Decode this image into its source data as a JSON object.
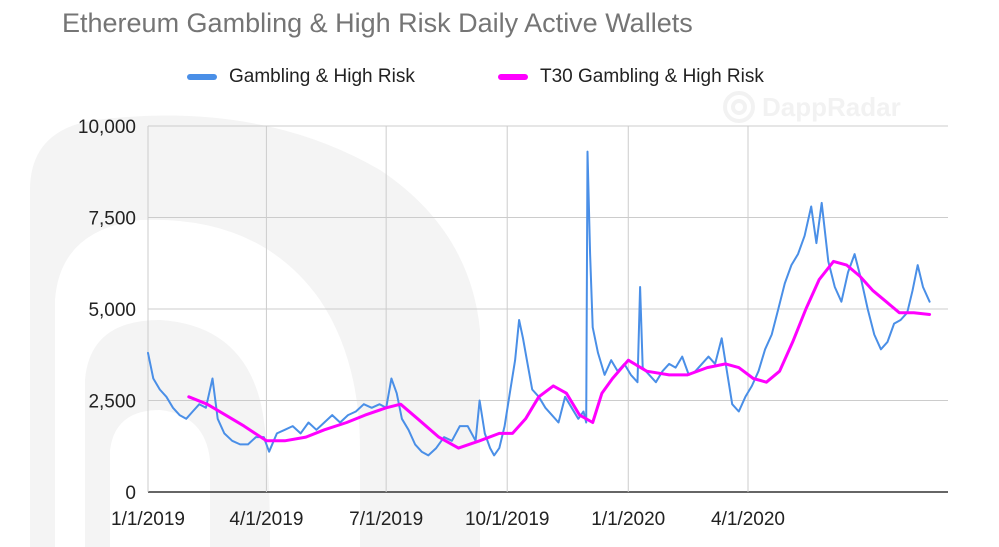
{
  "chart_data": {
    "type": "line",
    "title": "Ethereum Gambling & High Risk Daily Active Wallets",
    "watermark": "DappRadar",
    "xlabel": "",
    "ylabel": "",
    "x_ticks": [
      "1/1/2019",
      "4/1/2019",
      "7/1/2019",
      "10/1/2019",
      "1/1/2020",
      "4/1/2020"
    ],
    "y_ticks": [
      "0",
      "2,500",
      "5,000",
      "7,500",
      "10,000"
    ],
    "ylim": [
      0,
      10000
    ],
    "xlim": [
      "2019-01-01",
      "2020-08-31"
    ],
    "grid": true,
    "legend_position": "top",
    "series": [
      {
        "name": "Gambling & High Risk",
        "color": "#4a8fe7",
        "points": [
          [
            "2019-01-01",
            3800
          ],
          [
            "2019-01-05",
            3100
          ],
          [
            "2019-01-10",
            2800
          ],
          [
            "2019-01-15",
            2600
          ],
          [
            "2019-01-20",
            2300
          ],
          [
            "2019-01-25",
            2100
          ],
          [
            "2019-01-30",
            2000
          ],
          [
            "2019-02-04",
            2200
          ],
          [
            "2019-02-09",
            2400
          ],
          [
            "2019-02-14",
            2300
          ],
          [
            "2019-02-19",
            3100
          ],
          [
            "2019-02-23",
            2000
          ],
          [
            "2019-02-28",
            1600
          ],
          [
            "2019-03-06",
            1400
          ],
          [
            "2019-03-12",
            1300
          ],
          [
            "2019-03-18",
            1300
          ],
          [
            "2019-03-24",
            1500
          ],
          [
            "2019-03-30",
            1500
          ],
          [
            "2019-04-03",
            1100
          ],
          [
            "2019-04-09",
            1600
          ],
          [
            "2019-04-15",
            1700
          ],
          [
            "2019-04-21",
            1800
          ],
          [
            "2019-04-27",
            1600
          ],
          [
            "2019-05-03",
            1900
          ],
          [
            "2019-05-09",
            1700
          ],
          [
            "2019-05-15",
            1900
          ],
          [
            "2019-05-21",
            2100
          ],
          [
            "2019-05-27",
            1900
          ],
          [
            "2019-06-02",
            2100
          ],
          [
            "2019-06-08",
            2200
          ],
          [
            "2019-06-14",
            2400
          ],
          [
            "2019-06-20",
            2300
          ],
          [
            "2019-06-26",
            2400
          ],
          [
            "2019-07-01",
            2300
          ],
          [
            "2019-07-05",
            3100
          ],
          [
            "2019-07-09",
            2700
          ],
          [
            "2019-07-13",
            2000
          ],
          [
            "2019-07-18",
            1700
          ],
          [
            "2019-07-23",
            1300
          ],
          [
            "2019-07-28",
            1100
          ],
          [
            "2019-08-02",
            1000
          ],
          [
            "2019-08-08",
            1200
          ],
          [
            "2019-08-14",
            1500
          ],
          [
            "2019-08-20",
            1400
          ],
          [
            "2019-08-26",
            1800
          ],
          [
            "2019-09-01",
            1800
          ],
          [
            "2019-09-07",
            1400
          ],
          [
            "2019-09-10",
            2500
          ],
          [
            "2019-09-14",
            1600
          ],
          [
            "2019-09-18",
            1200
          ],
          [
            "2019-09-21",
            1000
          ],
          [
            "2019-09-25",
            1200
          ],
          [
            "2019-09-29",
            1800
          ],
          [
            "2019-10-03",
            2700
          ],
          [
            "2019-10-07",
            3600
          ],
          [
            "2019-10-10",
            4700
          ],
          [
            "2019-10-13",
            4200
          ],
          [
            "2019-10-16",
            3600
          ],
          [
            "2019-10-20",
            2800
          ],
          [
            "2019-10-25",
            2600
          ],
          [
            "2019-10-30",
            2300
          ],
          [
            "2019-11-04",
            2100
          ],
          [
            "2019-11-09",
            1900
          ],
          [
            "2019-11-14",
            2600
          ],
          [
            "2019-11-19",
            2300
          ],
          [
            "2019-11-24",
            2000
          ],
          [
            "2019-11-28",
            2200
          ],
          [
            "2019-11-30",
            1900
          ],
          [
            "2019-12-01",
            9300
          ],
          [
            "2019-12-03",
            6500
          ],
          [
            "2019-12-05",
            4500
          ],
          [
            "2019-12-09",
            3800
          ],
          [
            "2019-12-14",
            3200
          ],
          [
            "2019-12-19",
            3600
          ],
          [
            "2019-12-24",
            3300
          ],
          [
            "2019-12-29",
            3500
          ],
          [
            "2020-01-03",
            3200
          ],
          [
            "2020-01-08",
            3000
          ],
          [
            "2020-01-10",
            5600
          ],
          [
            "2020-01-12",
            3400
          ],
          [
            "2020-01-17",
            3200
          ],
          [
            "2020-01-22",
            3000
          ],
          [
            "2020-01-27",
            3300
          ],
          [
            "2020-02-01",
            3500
          ],
          [
            "2020-02-06",
            3400
          ],
          [
            "2020-02-11",
            3700
          ],
          [
            "2020-02-16",
            3200
          ],
          [
            "2020-02-21",
            3300
          ],
          [
            "2020-02-26",
            3500
          ],
          [
            "2020-03-02",
            3700
          ],
          [
            "2020-03-07",
            3500
          ],
          [
            "2020-03-12",
            4200
          ],
          [
            "2020-03-16",
            3300
          ],
          [
            "2020-03-20",
            2400
          ],
          [
            "2020-03-25",
            2200
          ],
          [
            "2020-03-30",
            2600
          ],
          [
            "2020-04-04",
            2900
          ],
          [
            "2020-04-09",
            3300
          ],
          [
            "2020-04-14",
            3900
          ],
          [
            "2020-04-19",
            4300
          ],
          [
            "2020-04-24",
            5000
          ],
          [
            "2020-04-29",
            5700
          ],
          [
            "2020-05-04",
            6200
          ],
          [
            "2020-05-09",
            6500
          ],
          [
            "2020-05-14",
            7000
          ],
          [
            "2020-05-19",
            7800
          ],
          [
            "2020-05-23",
            6800
          ],
          [
            "2020-05-27",
            7900
          ],
          [
            "2020-06-01",
            6300
          ],
          [
            "2020-06-06",
            5600
          ],
          [
            "2020-06-11",
            5200
          ],
          [
            "2020-06-16",
            6000
          ],
          [
            "2020-06-21",
            6500
          ],
          [
            "2020-06-26",
            5800
          ],
          [
            "2020-07-01",
            5000
          ],
          [
            "2020-07-06",
            4300
          ],
          [
            "2020-07-11",
            3900
          ],
          [
            "2020-07-16",
            4100
          ],
          [
            "2020-07-21",
            4600
          ],
          [
            "2020-07-26",
            4700
          ],
          [
            "2020-07-31",
            4900
          ],
          [
            "2020-08-04",
            5500
          ],
          [
            "2020-08-08",
            6200
          ],
          [
            "2020-08-12",
            5600
          ],
          [
            "2020-08-17",
            5200
          ]
        ]
      },
      {
        "name": "T30 Gambling & High Risk",
        "color": "#ff00ff",
        "points": [
          [
            "2019-02-01",
            2600
          ],
          [
            "2019-02-15",
            2400
          ],
          [
            "2019-03-01",
            2100
          ],
          [
            "2019-03-15",
            1800
          ],
          [
            "2019-04-01",
            1400
          ],
          [
            "2019-04-15",
            1400
          ],
          [
            "2019-05-01",
            1500
          ],
          [
            "2019-05-15",
            1700
          ],
          [
            "2019-06-01",
            1900
          ],
          [
            "2019-06-15",
            2100
          ],
          [
            "2019-07-01",
            2300
          ],
          [
            "2019-07-12",
            2400
          ],
          [
            "2019-07-25",
            2000
          ],
          [
            "2019-08-10",
            1500
          ],
          [
            "2019-08-25",
            1200
          ],
          [
            "2019-09-10",
            1400
          ],
          [
            "2019-09-25",
            1600
          ],
          [
            "2019-10-05",
            1600
          ],
          [
            "2019-10-15",
            2000
          ],
          [
            "2019-10-25",
            2600
          ],
          [
            "2019-11-05",
            2900
          ],
          [
            "2019-11-15",
            2700
          ],
          [
            "2019-11-25",
            2100
          ],
          [
            "2019-12-05",
            1900
          ],
          [
            "2019-12-12",
            2700
          ],
          [
            "2019-12-20",
            3100
          ],
          [
            "2020-01-01",
            3600
          ],
          [
            "2020-01-15",
            3300
          ],
          [
            "2020-02-01",
            3200
          ],
          [
            "2020-02-15",
            3200
          ],
          [
            "2020-03-01",
            3400
          ],
          [
            "2020-03-15",
            3500
          ],
          [
            "2020-03-25",
            3400
          ],
          [
            "2020-04-05",
            3100
          ],
          [
            "2020-04-15",
            3000
          ],
          [
            "2020-04-25",
            3300
          ],
          [
            "2020-05-05",
            4100
          ],
          [
            "2020-05-15",
            5000
          ],
          [
            "2020-05-25",
            5800
          ],
          [
            "2020-06-05",
            6300
          ],
          [
            "2020-06-15",
            6200
          ],
          [
            "2020-06-25",
            5900
          ],
          [
            "2020-07-05",
            5500
          ],
          [
            "2020-07-15",
            5200
          ],
          [
            "2020-07-25",
            4900
          ],
          [
            "2020-08-05",
            4900
          ],
          [
            "2020-08-17",
            4850
          ]
        ]
      }
    ]
  }
}
